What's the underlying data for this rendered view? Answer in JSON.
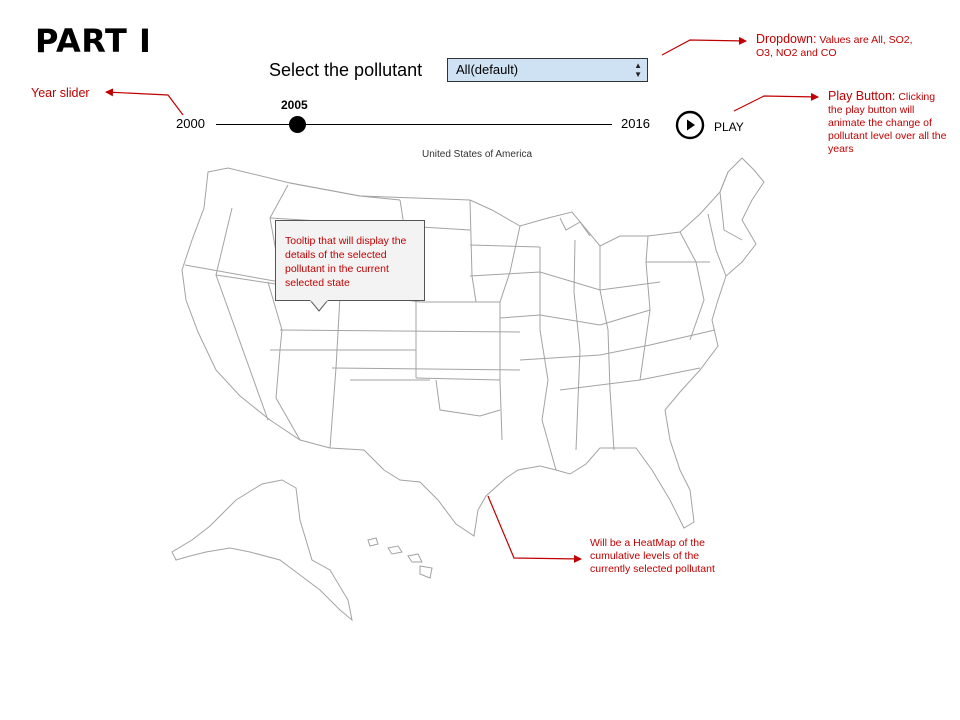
{
  "page": {
    "title": "PART I"
  },
  "controls": {
    "pollutant_label": "Select the pollutant",
    "dropdown": {
      "selected": "All(default)"
    },
    "year_slider": {
      "min_label": "2000",
      "max_label": "2016",
      "current_label": "2005",
      "min": 2000,
      "max": 2016,
      "value": 2005
    },
    "play_label": "PLAY"
  },
  "map": {
    "title": "United States of America",
    "tooltip_text": "Tooltip that will display the details of the selected pollutant in the current selected state"
  },
  "annotations": {
    "slider": "Year slider",
    "dropdown_head": "Dropdown:",
    "dropdown_body": "Values are All, SO2, O3, NO2 and CO",
    "play_head": "Play Button:",
    "play_body": "Clicking the play button will animate the change of pollutant level over all the years",
    "heatmap": "Will be a HeatMap of the cumulative levels of the currently selected pollutant"
  },
  "colors": {
    "annotation": "#c00000",
    "dropdown_bg": "#cfe2f3",
    "map_stroke": "#a3a3a3"
  },
  "icons": [
    "play-circle-icon",
    "dropdown-arrows-icon"
  ]
}
